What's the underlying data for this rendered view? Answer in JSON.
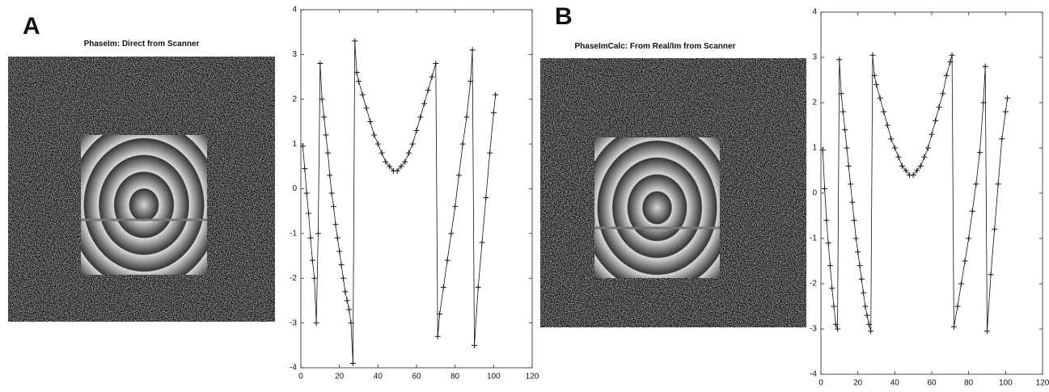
{
  "panels": [
    {
      "label": "A",
      "image_title": "PhaseIm:  Direct from Scanner"
    },
    {
      "label": "B",
      "image_title": "PhaseImCalc:  From Real/Im from Scanner"
    }
  ],
  "chart_data": [
    {
      "type": "line",
      "color": "#111111",
      "x": [
        1,
        2,
        3,
        4,
        5,
        6,
        7,
        8,
        9,
        10,
        11,
        12,
        13,
        14,
        15,
        16,
        17,
        18,
        19,
        20,
        21,
        22,
        23,
        24,
        25,
        26,
        27,
        28,
        29,
        30,
        32,
        34,
        36,
        38,
        40,
        42,
        44,
        46,
        48,
        50,
        52,
        54,
        56,
        58,
        60,
        62,
        64,
        66,
        68,
        70,
        71,
        72,
        74,
        76,
        78,
        80,
        82,
        84,
        86,
        88,
        89,
        90,
        92,
        94,
        96,
        98,
        100,
        101
      ],
      "values": [
        0.95,
        0.45,
        -0.1,
        -0.55,
        -1.1,
        -1.6,
        -2.0,
        -3.0,
        -1.0,
        2.8,
        2.0,
        1.6,
        1.2,
        0.8,
        0.3,
        -0.1,
        -0.4,
        -0.8,
        -1.1,
        -1.4,
        -1.7,
        -2.0,
        -2.3,
        -2.5,
        -2.7,
        -3.0,
        -3.9,
        3.3,
        2.6,
        2.4,
        2.1,
        1.8,
        1.5,
        1.2,
        1.0,
        0.8,
        0.6,
        0.5,
        0.4,
        0.4,
        0.5,
        0.6,
        0.8,
        1.0,
        1.3,
        1.6,
        1.9,
        2.2,
        2.5,
        2.8,
        -3.3,
        -2.8,
        -2.2,
        -1.6,
        -1.0,
        -0.4,
        0.3,
        1.0,
        1.6,
        2.4,
        3.1,
        -3.5,
        -2.2,
        -1.2,
        -0.2,
        0.8,
        1.7,
        2.1
      ],
      "xlim": [
        0,
        120
      ],
      "ylim": [
        -4,
        4
      ],
      "xticks": [
        0,
        20,
        40,
        60,
        80,
        100,
        120
      ],
      "yticks": [
        -4,
        -3,
        -2,
        -1,
        0,
        1,
        2,
        3,
        4
      ]
    },
    {
      "type": "line",
      "color": "#111111",
      "x": [
        1,
        2,
        3,
        4,
        5,
        6,
        7,
        8,
        9,
        10,
        11,
        12,
        13,
        14,
        15,
        16,
        17,
        18,
        19,
        20,
        21,
        22,
        23,
        24,
        25,
        26,
        27,
        28,
        29,
        30,
        32,
        34,
        36,
        38,
        40,
        42,
        44,
        46,
        48,
        50,
        52,
        54,
        56,
        58,
        60,
        62,
        64,
        66,
        68,
        70,
        71,
        72,
        74,
        76,
        78,
        80,
        82,
        84,
        86,
        88,
        89,
        90,
        92,
        94,
        96,
        98,
        100,
        101
      ],
      "values": [
        0.95,
        0.1,
        -0.6,
        -1.1,
        -1.6,
        -2.1,
        -2.5,
        -2.9,
        -3.0,
        2.95,
        2.2,
        1.8,
        1.4,
        1.0,
        0.6,
        0.2,
        -0.2,
        -0.6,
        -1.0,
        -1.3,
        -1.6,
        -1.9,
        -2.2,
        -2.5,
        -2.7,
        -2.9,
        -3.05,
        3.05,
        2.6,
        2.4,
        2.1,
        1.8,
        1.5,
        1.2,
        1.0,
        0.8,
        0.6,
        0.5,
        0.4,
        0.4,
        0.5,
        0.6,
        0.8,
        1.0,
        1.3,
        1.6,
        1.9,
        2.2,
        2.6,
        2.9,
        3.05,
        -2.95,
        -2.5,
        -2.0,
        -1.5,
        -1.0,
        -0.4,
        0.2,
        0.9,
        2.0,
        2.8,
        -3.05,
        -1.8,
        -0.8,
        0.2,
        1.2,
        1.8,
        2.1
      ],
      "xlim": [
        0,
        120
      ],
      "ylim": [
        -4,
        4
      ],
      "xticks": [
        0,
        20,
        40,
        60,
        80,
        100,
        120
      ],
      "yticks": [
        -4,
        -3,
        -2,
        -1,
        0,
        1,
        2,
        3,
        4
      ]
    }
  ]
}
